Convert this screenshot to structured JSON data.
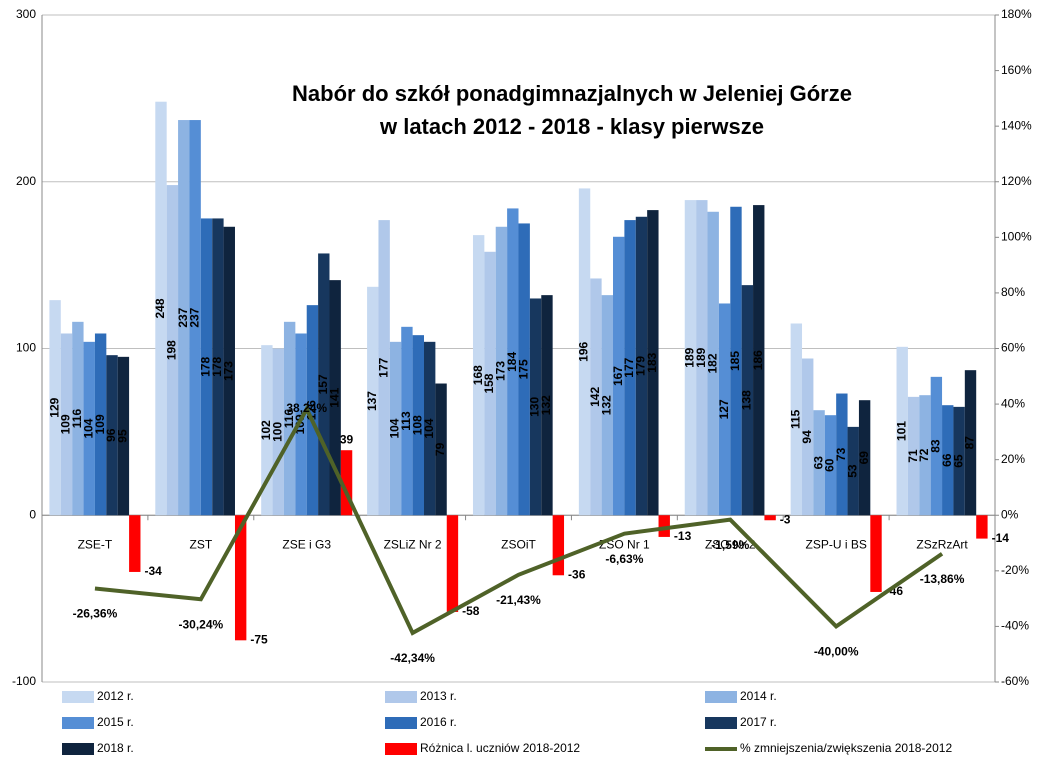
{
  "chart_data": {
    "type": "bar",
    "title": "Nabór do szkół ponadgimnazjalnych w Jeleniej Górze",
    "subtitle": "w latach 2012 - 2018 - klasy pierwsze",
    "categories": [
      "ZSE-T",
      "ZST",
      "ZSE i G3",
      "ZSLiZ Nr 2",
      "ZSOiT",
      "ZSO Nr 1",
      "ZSO Nr 2",
      "ZSP-U i BS",
      "ZSzRzArt"
    ],
    "series": [
      {
        "name": "2012 r.",
        "color": "#c6d9f1",
        "values": [
          129,
          248,
          102,
          137,
          168,
          196,
          189,
          115,
          101
        ]
      },
      {
        "name": "2013 r.",
        "color": "#b0c8ea",
        "values": [
          109,
          198,
          100,
          177,
          158,
          142,
          189,
          94,
          71
        ]
      },
      {
        "name": "2014 r.",
        "color": "#8db3e2",
        "values": [
          116,
          237,
          116,
          104,
          173,
          132,
          182,
          63,
          72
        ]
      },
      {
        "name": "2015 r.",
        "color": "#558ed5",
        "values": [
          104,
          237,
          109,
          113,
          184,
          167,
          127,
          60,
          83
        ]
      },
      {
        "name": "2016 r.",
        "color": "#2e6cb8",
        "values": [
          109,
          178,
          126,
          108,
          175,
          177,
          185,
          73,
          66
        ]
      },
      {
        "name": "2017 r.",
        "color": "#17375e",
        "values": [
          96,
          178,
          157,
          104,
          130,
          179,
          138,
          53,
          65
        ]
      },
      {
        "name": "2018 r.",
        "color": "#0f243e",
        "values": [
          95,
          173,
          141,
          79,
          132,
          183,
          186,
          69,
          87
        ]
      },
      {
        "name": "Różnica l. uczniów 2018-2012",
        "color": "#ff0000",
        "values": [
          -34,
          -75,
          39,
          -58,
          -36,
          -13,
          -3,
          -46,
          -14
        ]
      },
      {
        "name": "% zmniejszenia/zwiększenia 2018-2012",
        "color": "#4f6228",
        "type": "line",
        "axis": "y2",
        "values": [
          -26.36,
          -30.24,
          38.24,
          -42.34,
          -21.43,
          -6.63,
          -1.59,
          -40.0,
          -13.86
        ],
        "value_labels": [
          "-26,36%",
          "-30,24%",
          "38,24%",
          "-42,34%",
          "-21,43%",
          "-6,63%",
          "-1,59%",
          "-40,00%",
          "-13,86%"
        ]
      }
    ],
    "ylim": [
      -100,
      300
    ],
    "yticks": [
      -100,
      0,
      100,
      200,
      300
    ],
    "y2lim": [
      -60,
      180
    ],
    "y2ticks": [
      {
        "value": -60,
        "label": "-60%"
      },
      {
        "value": -40,
        "label": "-40%"
      },
      {
        "value": -20,
        "label": "-20%"
      },
      {
        "value": 0,
        "label": "0%"
      },
      {
        "value": 20,
        "label": "20%"
      },
      {
        "value": 40,
        "label": "40%"
      },
      {
        "value": 60,
        "label": "60%"
      },
      {
        "value": 80,
        "label": "80%"
      },
      {
        "value": 100,
        "label": "100%"
      },
      {
        "value": 120,
        "label": "120%"
      },
      {
        "value": 140,
        "label": "140%"
      },
      {
        "value": 160,
        "label": "160%"
      },
      {
        "value": 180,
        "label": "180%"
      }
    ],
    "grid": true
  }
}
